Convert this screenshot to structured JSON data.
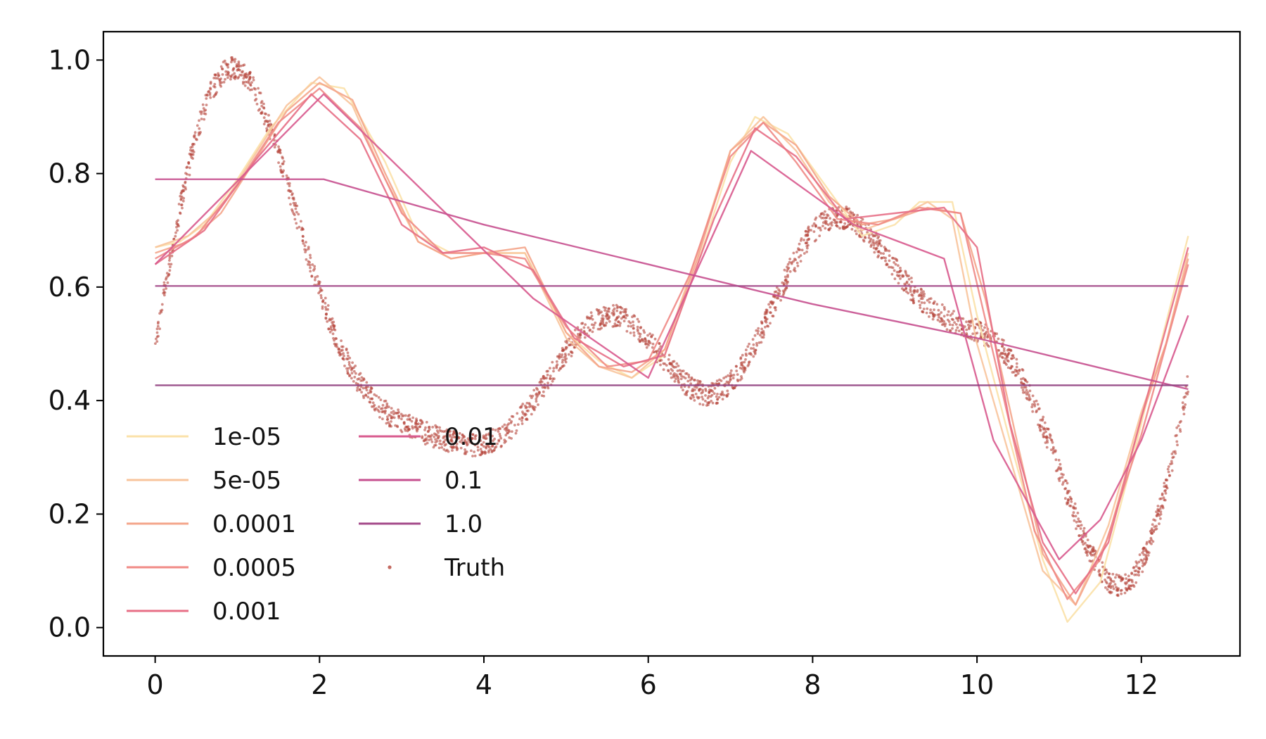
{
  "chart_data": {
    "type": "line",
    "title": "",
    "xlabel": "",
    "ylabel": "",
    "xlim": [
      -0.63,
      13.2
    ],
    "ylim": [
      -0.05,
      1.05
    ],
    "x_ticks": [
      0,
      2,
      4,
      6,
      8,
      10,
      12
    ],
    "x_tick_labels": [
      "0",
      "2",
      "4",
      "6",
      "8",
      "10",
      "12"
    ],
    "y_ticks": [
      0.0,
      0.2,
      0.4,
      0.6,
      0.8,
      1.0
    ],
    "y_tick_labels": [
      "0.0",
      "0.2",
      "0.4",
      "0.6",
      "0.8",
      "1.0"
    ],
    "grid": false,
    "legend_position": "lower-left",
    "legend_columns": 2,
    "series": [
      {
        "name": "1e-05",
        "color": "#fbe1a8",
        "x": [
          0,
          0.3,
          0.6,
          1.0,
          1.4,
          1.9,
          2.3,
          2.8,
          3.2,
          3.6,
          4.0,
          4.5,
          5.0,
          5.4,
          5.8,
          6.2,
          6.6,
          7.0,
          7.3,
          7.7,
          8.2,
          8.6,
          9.0,
          9.3,
          9.7,
          10.0,
          10.4,
          10.8,
          11.1,
          11.5,
          11.9,
          12.2,
          12.57
        ],
        "values": [
          0.67,
          0.68,
          0.71,
          0.79,
          0.88,
          0.96,
          0.95,
          0.82,
          0.69,
          0.66,
          0.66,
          0.66,
          0.52,
          0.47,
          0.44,
          0.48,
          0.64,
          0.82,
          0.9,
          0.87,
          0.77,
          0.69,
          0.71,
          0.75,
          0.75,
          0.55,
          0.33,
          0.12,
          0.01,
          0.08,
          0.3,
          0.48,
          0.69
        ]
      },
      {
        "name": "5e-05",
        "color": "#f8c49c",
        "x": [
          0,
          0.4,
          0.8,
          1.2,
          1.6,
          2.0,
          2.4,
          2.8,
          3.2,
          3.6,
          4.0,
          4.5,
          5.0,
          5.4,
          5.8,
          6.2,
          6.6,
          7.0,
          7.4,
          7.8,
          8.2,
          8.6,
          9.0,
          9.4,
          9.7,
          10.0,
          10.4,
          10.8,
          11.2,
          11.6,
          12.0,
          12.3,
          12.57
        ],
        "values": [
          0.67,
          0.69,
          0.74,
          0.83,
          0.92,
          0.97,
          0.92,
          0.79,
          0.68,
          0.65,
          0.66,
          0.66,
          0.51,
          0.46,
          0.44,
          0.49,
          0.66,
          0.84,
          0.9,
          0.84,
          0.75,
          0.7,
          0.72,
          0.75,
          0.72,
          0.5,
          0.3,
          0.1,
          0.04,
          0.18,
          0.38,
          0.5,
          0.66
        ]
      },
      {
        "name": "0.0001",
        "color": "#f4a58b",
        "x": [
          0,
          0.4,
          0.8,
          1.2,
          1.6,
          2.0,
          2.4,
          2.8,
          3.2,
          3.6,
          4.0,
          4.5,
          5.0,
          5.4,
          5.8,
          6.2,
          6.6,
          7.0,
          7.4,
          7.8,
          8.2,
          8.6,
          9.0,
          9.4,
          9.8,
          10.1,
          10.5,
          10.8,
          11.2,
          11.6,
          12.0,
          12.3,
          12.57
        ],
        "values": [
          0.66,
          0.68,
          0.73,
          0.82,
          0.91,
          0.96,
          0.93,
          0.8,
          0.68,
          0.65,
          0.66,
          0.67,
          0.52,
          0.46,
          0.45,
          0.49,
          0.65,
          0.84,
          0.89,
          0.85,
          0.76,
          0.71,
          0.72,
          0.74,
          0.73,
          0.58,
          0.32,
          0.13,
          0.04,
          0.16,
          0.37,
          0.5,
          0.65
        ]
      },
      {
        "name": "0.0005",
        "color": "#f08a86",
        "x": [
          0,
          0.5,
          1.0,
          1.5,
          2.0,
          2.5,
          3.0,
          3.5,
          4.0,
          4.5,
          5.0,
          5.5,
          6.0,
          6.5,
          7.0,
          7.4,
          7.8,
          8.3,
          8.8,
          9.3,
          9.8,
          10.3,
          10.7,
          11.1,
          11.5,
          12.0,
          12.57
        ],
        "values": [
          0.65,
          0.69,
          0.78,
          0.89,
          0.95,
          0.88,
          0.73,
          0.66,
          0.66,
          0.65,
          0.53,
          0.46,
          0.47,
          0.62,
          0.83,
          0.89,
          0.82,
          0.72,
          0.71,
          0.74,
          0.73,
          0.42,
          0.17,
          0.05,
          0.12,
          0.34,
          0.64
        ]
      },
      {
        "name": "0.001",
        "color": "#e76f86",
        "x": [
          0,
          0.6,
          1.2,
          1.9,
          2.5,
          3.0,
          3.5,
          4.0,
          4.6,
          5.1,
          5.7,
          6.2,
          6.8,
          7.3,
          7.8,
          8.4,
          9.0,
          9.6,
          10.0,
          10.4,
          10.8,
          11.2,
          11.6,
          12.0,
          12.57
        ],
        "values": [
          0.64,
          0.7,
          0.82,
          0.94,
          0.86,
          0.71,
          0.66,
          0.67,
          0.63,
          0.51,
          0.46,
          0.48,
          0.72,
          0.88,
          0.83,
          0.72,
          0.73,
          0.74,
          0.67,
          0.36,
          0.15,
          0.06,
          0.15,
          0.37,
          0.67
        ]
      },
      {
        "name": "0.01",
        "color": "#d85a8e",
        "x": [
          0,
          2.05,
          4.6,
          6.0,
          7.25,
          8.5,
          9.6,
          10.2,
          11.0,
          11.5,
          12.0,
          12.57
        ],
        "values": [
          0.64,
          0.94,
          0.58,
          0.44,
          0.84,
          0.71,
          0.65,
          0.33,
          0.12,
          0.19,
          0.33,
          0.55
        ]
      },
      {
        "name": "0.1",
        "color": "#c6508f",
        "x": [
          0,
          2.05,
          4.0,
          6.0,
          8.0,
          10.0,
          12.57
        ],
        "values": [
          0.79,
          0.79,
          0.71,
          0.64,
          0.57,
          0.51,
          0.42
        ]
      },
      {
        "name": "1.0",
        "color": "#a34a8a",
        "x": [
          0,
          12.57
        ],
        "values": [
          0.602,
          0.602
        ]
      },
      {
        "name": "",
        "color": "#8f3f80",
        "x": [
          0,
          12.57
        ],
        "values": [
          0.427,
          0.427
        ]
      }
    ],
    "truth": {
      "name": "Truth",
      "color": "#b5453a",
      "expression": "0.5 + 0.2*sin(x) + 0.2*sin(1.5*x) + 0.15*sin(2.2*x)*cos(0.3*x)",
      "x_range": [
        0,
        12.57
      ],
      "noise_amplitude": 0.02,
      "points": 2600
    }
  }
}
